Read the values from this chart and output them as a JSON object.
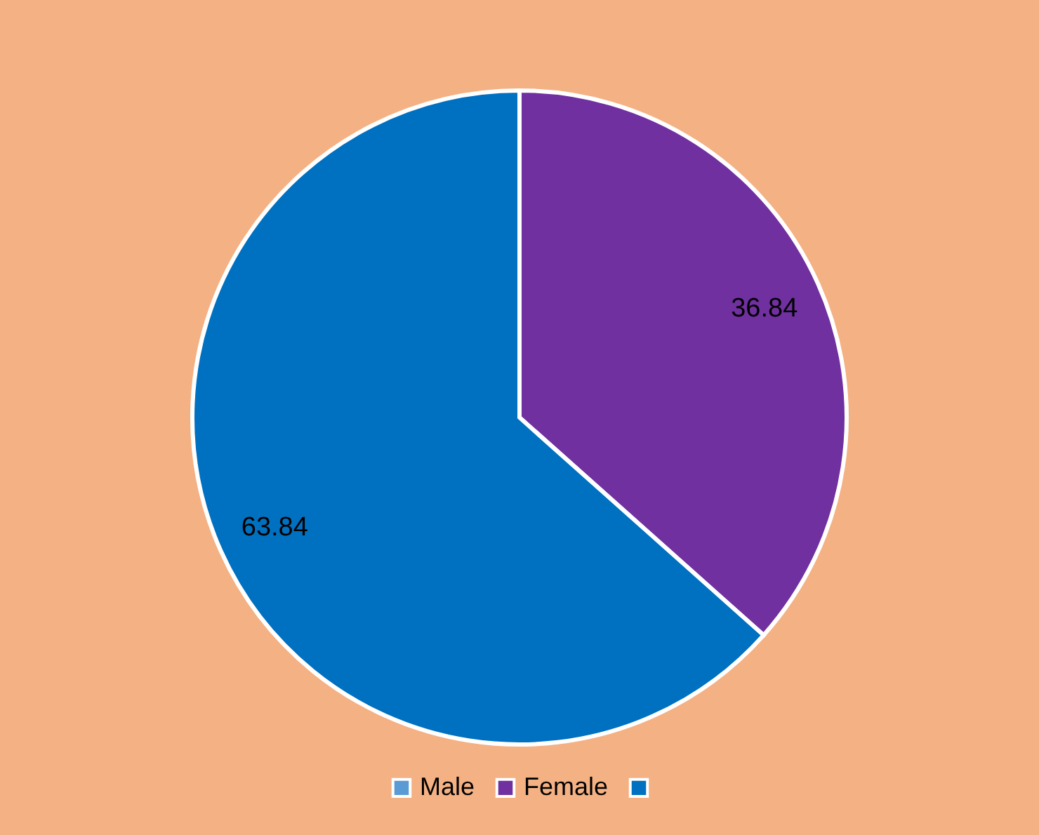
{
  "chart_data": {
    "type": "pie",
    "categories": [
      "Male",
      "Female",
      null
    ],
    "values": [
      null,
      36.84,
      63.84
    ],
    "colors": [
      "#5b9bd5",
      "#7030a0",
      "#0070c0"
    ],
    "data_labels": true,
    "legend": "bottom"
  }
}
